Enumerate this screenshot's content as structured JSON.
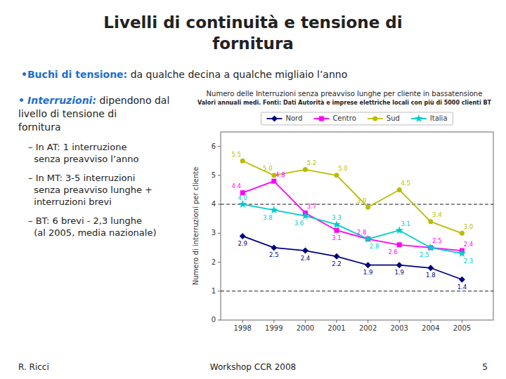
{
  "chart_data": {
    "type": "line",
    "title": "Numero delle Interruzioni senza preavviso lunghe per cliente in bassatensione",
    "subtitle": "Valori annuali medi. Fonti: Dati Autorità e imprese elettriche locali con più di 5000 clienti BT",
    "y_label": "Numero di interruzioni per cliente",
    "x": [
      1998,
      1999,
      2000,
      2001,
      2002,
      2003,
      2004,
      2005
    ],
    "xlim": [
      1997.3,
      2006.0
    ],
    "xticks": [
      1998,
      1999,
      2000,
      2001,
      2002,
      2003,
      2004,
      2005
    ],
    "ylim": [
      0,
      6.5
    ],
    "yticks": [
      0,
      1,
      2,
      3,
      4,
      5,
      6
    ],
    "grid": false,
    "legend": "top",
    "data_labels": true,
    "hlines": [
      4.0,
      1.0
    ],
    "series": [
      {
        "name": "Nord",
        "color": "#000080",
        "marker": "diamond",
        "values": [
          2.9,
          2.5,
          2.4,
          2.2,
          1.9,
          1.9,
          1.8,
          1.4
        ]
      },
      {
        "name": "Centro",
        "color": "#FF00FF",
        "marker": "square",
        "values": [
          4.4,
          4.8,
          3.7,
          3.1,
          2.8,
          2.6,
          2.5,
          2.4
        ]
      },
      {
        "name": "Sud",
        "color": "#BBBB00",
        "marker": "circle",
        "values": [
          5.5,
          5.0,
          5.2,
          5.0,
          3.9,
          4.5,
          3.4,
          3.0
        ]
      },
      {
        "name": "Italia",
        "color": "#00CCCC",
        "marker": "star",
        "values": [
          4.0,
          3.8,
          3.6,
          3.3,
          2.8,
          3.1,
          2.5,
          2.3
        ]
      }
    ]
  },
  "page": {
    "title": [
      "Livelli di continuità e tensione di",
      "fornitura"
    ],
    "color": "#1E6FCC",
    "bullets": [
      {
        "symbol": "•",
        "bold": "Buchi di tensione:",
        "text": " da qualche decina a qualche migliaio l’anno"
      },
      {
        "symbol": "•",
        "bold": "Interruzioni:",
        "text": " dipendono dal\nlivello di tensione di\nfornitura",
        "sub_bullets": [
          "– In AT: 1 interruzione\n  senza preavviso l’anno",
          "– In MT: 3-5 interruzioni\n  senza preavviso lunghe +\n  interruzioni brevi",
          "– BT: 6 brevi - 2,3 lunghe\n  (al 2005, media nazionale)"
        ]
      }
    ],
    "footer": [
      "R. Ricci",
      "Workshop CCR 2008",
      "5"
    ]
  }
}
